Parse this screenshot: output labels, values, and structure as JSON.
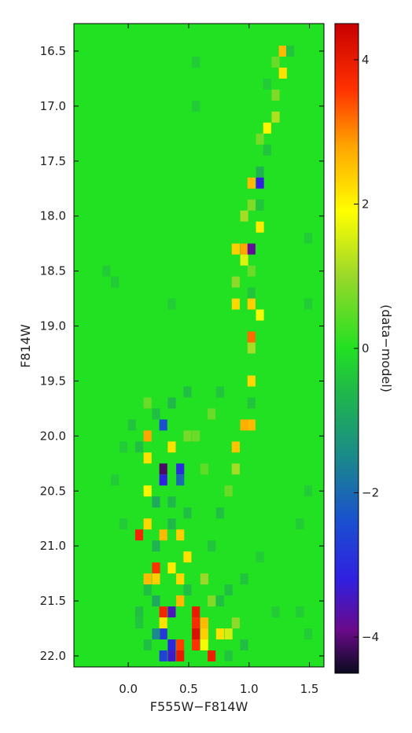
{
  "chart_data": {
    "type": "heatmap",
    "title": "",
    "xlabel": "F555W−F814W",
    "ylabel": "F814W",
    "xlim": [
      -0.45,
      1.62
    ],
    "ylim": [
      22.1,
      16.25
    ],
    "y_inverted": true,
    "x_ticks": [
      0.0,
      0.5,
      1.0,
      1.5
    ],
    "x_tick_labels": [
      "0.0",
      "0.5",
      "1.0",
      "1.5"
    ],
    "y_ticks": [
      16.5,
      17.0,
      17.5,
      18.0,
      18.5,
      19.0,
      19.5,
      20.0,
      20.5,
      21.0,
      21.5,
      22.0
    ],
    "y_tick_labels": [
      "16.5",
      "17.0",
      "17.5",
      "18.0",
      "18.5",
      "19.0",
      "19.5",
      "20.0",
      "20.5",
      "21.0",
      "21.5",
      "22.0"
    ],
    "background_value": 0,
    "bin_width_color": 0.066,
    "bin_width_mag": 0.1,
    "cells": [
      {
        "x": 1.28,
        "y": 16.5,
        "v": 2.6
      },
      {
        "x": 1.22,
        "y": 16.6,
        "v": 0.6
      },
      {
        "x": 1.34,
        "y": 16.5,
        "v": -0.4
      },
      {
        "x": 1.28,
        "y": 16.7,
        "v": 2.2
      },
      {
        "x": 1.22,
        "y": 16.9,
        "v": 0.8
      },
      {
        "x": 1.15,
        "y": 16.8,
        "v": -0.3
      },
      {
        "x": 1.22,
        "y": 17.1,
        "v": 1.2
      },
      {
        "x": 1.15,
        "y": 17.2,
        "v": 2.0
      },
      {
        "x": 1.09,
        "y": 17.3,
        "v": 0.7
      },
      {
        "x": 1.15,
        "y": 17.4,
        "v": -0.4
      },
      {
        "x": 1.09,
        "y": 17.6,
        "v": -0.7
      },
      {
        "x": 1.09,
        "y": 17.7,
        "v": -3.2
      },
      {
        "x": 1.02,
        "y": 17.7,
        "v": 2.6
      },
      {
        "x": 1.02,
        "y": 17.9,
        "v": 0.8
      },
      {
        "x": 1.09,
        "y": 17.9,
        "v": -0.4
      },
      {
        "x": 0.96,
        "y": 18.0,
        "v": 1.1
      },
      {
        "x": 1.09,
        "y": 18.1,
        "v": 2.1
      },
      {
        "x": 0.96,
        "y": 18.3,
        "v": 2.8
      },
      {
        "x": 0.89,
        "y": 18.3,
        "v": 2.4
      },
      {
        "x": 1.02,
        "y": 18.3,
        "v": -3.8
      },
      {
        "x": 1.02,
        "y": 18.5,
        "v": 0.6
      },
      {
        "x": 0.96,
        "y": 18.4,
        "v": 1.6
      },
      {
        "x": 0.89,
        "y": 18.6,
        "v": 0.9
      },
      {
        "x": 1.02,
        "y": 18.7,
        "v": -0.4
      },
      {
        "x": 0.89,
        "y": 18.8,
        "v": 2.3
      },
      {
        "x": 1.02,
        "y": 18.8,
        "v": 2.4
      },
      {
        "x": 1.09,
        "y": 18.9,
        "v": 1.8
      },
      {
        "x": 1.02,
        "y": 19.1,
        "v": 3.2
      },
      {
        "x": 1.02,
        "y": 19.2,
        "v": 1.1
      },
      {
        "x": 1.02,
        "y": 19.5,
        "v": 2.3
      },
      {
        "x": 1.02,
        "y": 19.7,
        "v": -0.4
      },
      {
        "x": 1.02,
        "y": 19.9,
        "v": 2.6
      },
      {
        "x": 0.96,
        "y": 19.9,
        "v": 2.7
      },
      {
        "x": 0.89,
        "y": 20.1,
        "v": 2.5
      },
      {
        "x": 0.89,
        "y": 20.3,
        "v": 1.1
      },
      {
        "x": 0.83,
        "y": 20.5,
        "v": 0.6
      },
      {
        "x": 0.16,
        "y": 20.0,
        "v": 2.8
      },
      {
        "x": 0.16,
        "y": 20.2,
        "v": 2.2
      },
      {
        "x": 0.29,
        "y": 19.9,
        "v": -2.4
      },
      {
        "x": 0.29,
        "y": 20.3,
        "v": -4.1
      },
      {
        "x": 0.29,
        "y": 20.4,
        "v": -3.2
      },
      {
        "x": 0.43,
        "y": 20.3,
        "v": -3.0
      },
      {
        "x": 0.43,
        "y": 20.4,
        "v": -2.0
      },
      {
        "x": 0.36,
        "y": 20.1,
        "v": 2.2
      },
      {
        "x": 0.16,
        "y": 20.5,
        "v": 2.0
      },
      {
        "x": 0.16,
        "y": 20.8,
        "v": 2.3
      },
      {
        "x": 0.09,
        "y": 20.9,
        "v": 3.8
      },
      {
        "x": 0.29,
        "y": 20.9,
        "v": 2.6
      },
      {
        "x": 0.43,
        "y": 20.9,
        "v": 2.4
      },
      {
        "x": 0.36,
        "y": 21.2,
        "v": 2.1
      },
      {
        "x": 0.23,
        "y": 21.2,
        "v": 3.6
      },
      {
        "x": 0.23,
        "y": 21.3,
        "v": 2.4
      },
      {
        "x": 0.16,
        "y": 21.3,
        "v": 2.6
      },
      {
        "x": 0.43,
        "y": 21.3,
        "v": 2.3
      },
      {
        "x": 0.43,
        "y": 21.5,
        "v": 2.6
      },
      {
        "x": 0.36,
        "y": 21.6,
        "v": -3.5
      },
      {
        "x": 0.29,
        "y": 21.6,
        "v": 3.8
      },
      {
        "x": 0.29,
        "y": 21.7,
        "v": 2.2
      },
      {
        "x": 0.29,
        "y": 21.8,
        "v": -2.8
      },
      {
        "x": 0.23,
        "y": 21.8,
        "v": -1.5
      },
      {
        "x": 0.36,
        "y": 21.9,
        "v": -3.1
      },
      {
        "x": 0.36,
        "y": 22.0,
        "v": -3.4
      },
      {
        "x": 0.29,
        "y": 22.0,
        "v": -2.6
      },
      {
        "x": 0.43,
        "y": 21.9,
        "v": 3.5
      },
      {
        "x": 0.43,
        "y": 22.0,
        "v": 4.0
      },
      {
        "x": 0.56,
        "y": 21.6,
        "v": 4.0
      },
      {
        "x": 0.56,
        "y": 21.7,
        "v": 3.7
      },
      {
        "x": 0.56,
        "y": 21.8,
        "v": 4.2
      },
      {
        "x": 0.56,
        "y": 21.9,
        "v": 3.6
      },
      {
        "x": 0.63,
        "y": 21.7,
        "v": 2.6
      },
      {
        "x": 0.63,
        "y": 21.8,
        "v": 2.4
      },
      {
        "x": 0.63,
        "y": 21.9,
        "v": 1.8
      },
      {
        "x": 0.69,
        "y": 22.0,
        "v": 3.9
      },
      {
        "x": 0.76,
        "y": 21.8,
        "v": 2.2
      },
      {
        "x": 0.83,
        "y": 21.8,
        "v": 1.5
      },
      {
        "x": 0.69,
        "y": 21.5,
        "v": 0.8
      },
      {
        "x": 0.49,
        "y": 21.1,
        "v": 2.2
      },
      {
        "x": 0.23,
        "y": 20.6,
        "v": -0.9
      },
      {
        "x": 0.36,
        "y": 20.6,
        "v": -0.6
      },
      {
        "x": 0.49,
        "y": 20.7,
        "v": -0.5
      },
      {
        "x": 0.09,
        "y": 20.1,
        "v": -0.5
      },
      {
        "x": -0.04,
        "y": 20.1,
        "v": -0.3
      },
      {
        "x": 0.03,
        "y": 19.9,
        "v": -0.4
      },
      {
        "x": -0.18,
        "y": 18.5,
        "v": -0.3
      },
      {
        "x": -0.11,
        "y": 18.6,
        "v": -0.3
      },
      {
        "x": 0.36,
        "y": 18.8,
        "v": -0.3
      },
      {
        "x": 0.56,
        "y": 16.6,
        "v": -0.3
      },
      {
        "x": 0.56,
        "y": 17.0,
        "v": -0.3
      },
      {
        "x": 1.49,
        "y": 18.2,
        "v": -0.3
      },
      {
        "x": 1.49,
        "y": 18.8,
        "v": -0.3
      },
      {
        "x": 1.49,
        "y": 20.5,
        "v": -0.3
      },
      {
        "x": 1.42,
        "y": 20.8,
        "v": -0.3
      },
      {
        "x": 1.49,
        "y": 21.8,
        "v": -0.3
      },
      {
        "x": -0.11,
        "y": 20.4,
        "v": -0.3
      },
      {
        "x": -0.04,
        "y": 20.8,
        "v": -0.3
      },
      {
        "x": 1.22,
        "y": 21.6,
        "v": -0.3
      },
      {
        "x": 1.42,
        "y": 21.6,
        "v": -0.3
      },
      {
        "x": 0.76,
        "y": 19.6,
        "v": -0.4
      },
      {
        "x": 0.69,
        "y": 19.8,
        "v": 0.6
      },
      {
        "x": 0.56,
        "y": 20.0,
        "v": 0.6
      },
      {
        "x": 0.63,
        "y": 20.3,
        "v": 0.5
      },
      {
        "x": 0.76,
        "y": 20.7,
        "v": -0.5
      },
      {
        "x": 0.69,
        "y": 21.0,
        "v": -0.4
      },
      {
        "x": 0.83,
        "y": 21.4,
        "v": -0.5
      },
      {
        "x": 0.96,
        "y": 21.3,
        "v": -0.4
      },
      {
        "x": 1.09,
        "y": 21.1,
        "v": -0.3
      },
      {
        "x": 0.49,
        "y": 19.6,
        "v": -0.5
      },
      {
        "x": 0.36,
        "y": 19.7,
        "v": -0.6
      },
      {
        "x": 0.23,
        "y": 19.8,
        "v": -0.5
      },
      {
        "x": 0.16,
        "y": 19.7,
        "v": 0.6
      },
      {
        "x": 0.49,
        "y": 20.0,
        "v": 0.7
      },
      {
        "x": 0.36,
        "y": 20.8,
        "v": -0.6
      },
      {
        "x": 0.23,
        "y": 21.0,
        "v": -0.7
      },
      {
        "x": 0.16,
        "y": 21.4,
        "v": -0.5
      },
      {
        "x": 0.09,
        "y": 21.6,
        "v": -0.5
      },
      {
        "x": 0.23,
        "y": 21.5,
        "v": -0.9
      },
      {
        "x": 0.16,
        "y": 21.9,
        "v": -0.5
      },
      {
        "x": 0.09,
        "y": 21.7,
        "v": -0.4
      },
      {
        "x": 0.49,
        "y": 21.4,
        "v": -0.5
      },
      {
        "x": 0.63,
        "y": 21.3,
        "v": 1.0
      },
      {
        "x": 0.76,
        "y": 21.5,
        "v": -0.5
      },
      {
        "x": 0.89,
        "y": 21.7,
        "v": 0.9
      },
      {
        "x": 0.96,
        "y": 21.9,
        "v": -0.5
      },
      {
        "x": 0.83,
        "y": 22.0,
        "v": -0.4
      }
    ],
    "colorbar": {
      "label": "(data−model)",
      "range": [
        -4.5,
        4.5
      ],
      "ticks": [
        -4,
        -2,
        0,
        2,
        4
      ],
      "tick_labels": [
        "−4",
        "−2",
        "0",
        "2",
        "4"
      ],
      "colormap": [
        {
          "v": -4.5,
          "color": "#0a0a1e"
        },
        {
          "v": -3.9,
          "color": "#6a0a8a"
        },
        {
          "v": -3.2,
          "color": "#3020e0"
        },
        {
          "v": -2.4,
          "color": "#1a4fd0"
        },
        {
          "v": -1.5,
          "color": "#1a8a8a"
        },
        {
          "v": -0.6,
          "color": "#20b84a"
        },
        {
          "v": 0.0,
          "color": "#22e022"
        },
        {
          "v": 1.0,
          "color": "#9ad82a"
        },
        {
          "v": 1.9,
          "color": "#ffff00"
        },
        {
          "v": 2.8,
          "color": "#ffa500"
        },
        {
          "v": 3.6,
          "color": "#ff3000"
        },
        {
          "v": 4.5,
          "color": "#c80000"
        }
      ]
    }
  }
}
